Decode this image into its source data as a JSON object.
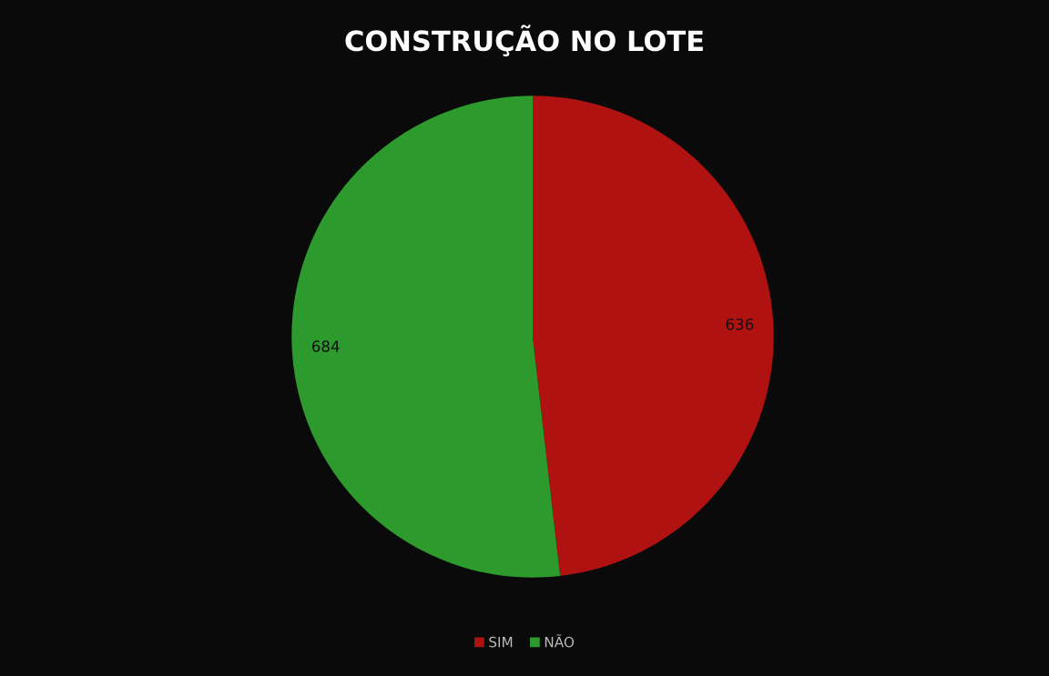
{
  "chart_data": {
    "type": "pie",
    "title": "CONSTRUÇÃO NO LOTE",
    "categories": [
      "SIM",
      "NÃO"
    ],
    "values": [
      636,
      684
    ],
    "colors": [
      "#b01212",
      "#2c9a2c"
    ],
    "data_labels": true,
    "legend": "bottom"
  }
}
